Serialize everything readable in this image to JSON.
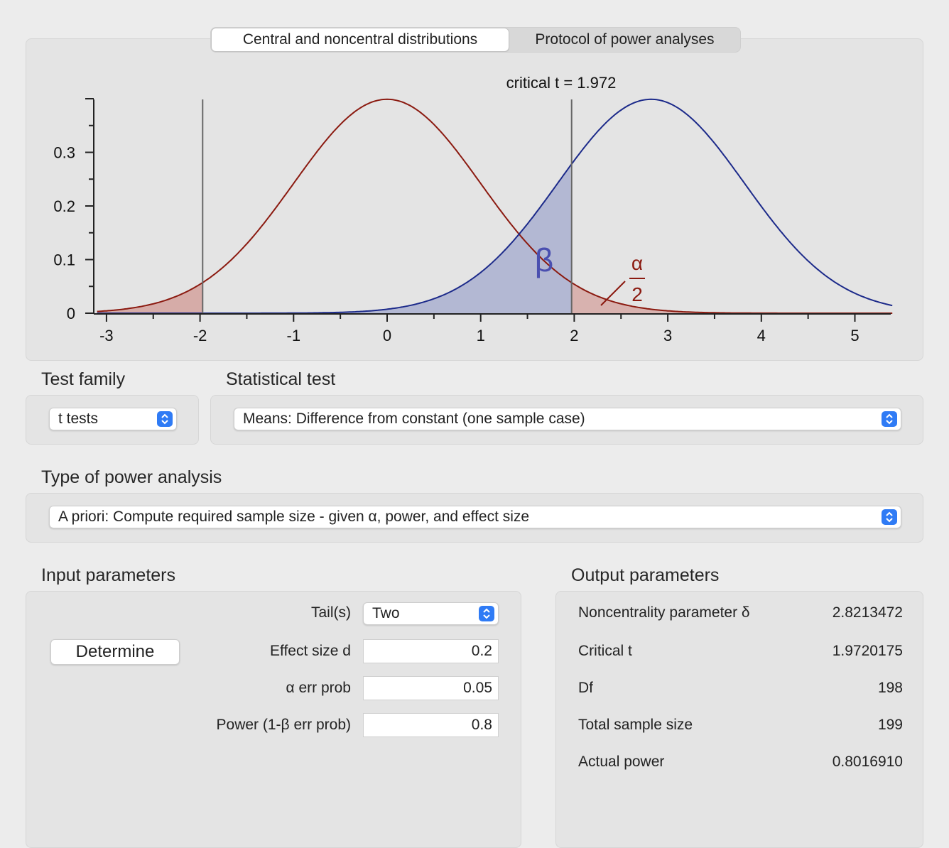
{
  "tabs": {
    "distributions": "Central and noncentral distributions",
    "protocol": "Protocol of power analyses"
  },
  "plot": {
    "critical_label": "critical t = 1.972",
    "beta_symbol": "β",
    "alpha_symbol": "α",
    "alpha_denominator": "2",
    "colors": {
      "central": "#8b1a10",
      "noncentral": "#1c2a8a",
      "beta_fill": "#b3b8d3",
      "alpha_fill": "#d6aca8",
      "critical_line": "#666666"
    }
  },
  "chart_data": {
    "type": "line",
    "title": "critical t = 1.972",
    "xlabel": "",
    "ylabel": "",
    "xlim": [
      -3.1,
      5.4
    ],
    "ylim": [
      0,
      0.4
    ],
    "x_ticks": [
      -3,
      -2,
      -1,
      0,
      1,
      2,
      3,
      4,
      5
    ],
    "y_ticks": [
      0,
      0.1,
      0.2,
      0.3
    ],
    "series": [
      {
        "name": "central",
        "distribution": "t",
        "df": 198,
        "noncentrality": 0
      },
      {
        "name": "noncentral",
        "distribution": "noncentral t",
        "df": 198,
        "noncentrality": 2.8213472
      }
    ],
    "critical_values": [
      -1.972,
      1.972
    ],
    "shaded": [
      "alpha/2 tails of central",
      "beta region of noncentral below 1.972"
    ]
  },
  "test_family": {
    "label": "Test family",
    "value": "t tests"
  },
  "statistical_test": {
    "label": "Statistical test",
    "value": "Means: Difference from constant (one sample case)"
  },
  "power_analysis": {
    "label": "Type of power analysis",
    "value": "A priori: Compute required sample size - given α, power, and effect size"
  },
  "input": {
    "title": "Input parameters",
    "determine": "Determine",
    "tails_label": "Tail(s)",
    "tails_value": "Two",
    "effect_label": "Effect size d",
    "effect_value": "0.2",
    "alpha_label": "α err prob",
    "alpha_value": "0.05",
    "power_label": "Power (1-β err prob)",
    "power_value": "0.8"
  },
  "output": {
    "title": "Output parameters",
    "rows": [
      {
        "label": "Noncentrality parameter δ",
        "value": "2.8213472"
      },
      {
        "label": "Critical t",
        "value": "1.9720175"
      },
      {
        "label": "Df",
        "value": "198"
      },
      {
        "label": "Total sample size",
        "value": "199"
      },
      {
        "label": "Actual power",
        "value": "0.8016910"
      }
    ]
  }
}
